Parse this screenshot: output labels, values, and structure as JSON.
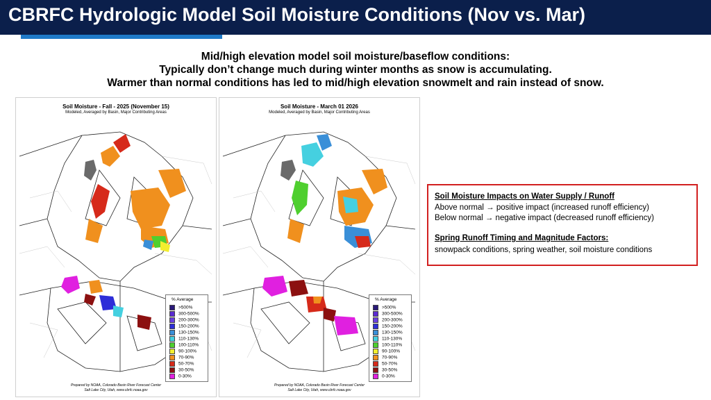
{
  "header": {
    "title": "CBRFC Hydrologic Model Soil Moisture Conditions (Nov vs. Mar)"
  },
  "subtitle": {
    "lines": [
      "Mid/high elevation model soil moisture/baseflow conditions:",
      "Typically don’t change much during winter months as snow is accumulating.",
      "Warmer than normal conditions has led to mid/high elevation snowmelt and rain instead of snow."
    ]
  },
  "maps": [
    {
      "title": "Soil Moisture - Fall - 2025 (November 15)",
      "subtitle": "Modeled, Averaged by Basin, Major Contributing Areas",
      "footer_line1": "Prepared by NOAA, Colorado Basin River Forecast Center",
      "footer_line2": "Salt Lake City, Utah, www.cbrfc.noaa.gov"
    },
    {
      "title": "Soil Moisture - March 01 2026",
      "subtitle": "Modeled, Averaged by Basin, Major Contributing Areas",
      "footer_line1": "Prepared by NOAA, Colorado Basin River Forecast Center",
      "footer_line2": "Salt Lake City, Utah, www.cbrfc.noaa.gov"
    }
  ],
  "legend": {
    "title": "% Average",
    "items": [
      {
        "label": ">500%",
        "color": "#2a1a7a"
      },
      {
        "label": "300-500%",
        "color": "#5b2bd1"
      },
      {
        "label": "200-300%",
        "color": "#6a3fe0"
      },
      {
        "label": "150-200%",
        "color": "#2e2ed8"
      },
      {
        "label": "130-150%",
        "color": "#3a8fd8"
      },
      {
        "label": "110-130%",
        "color": "#45d0e0"
      },
      {
        "label": "100-110%",
        "color": "#4fcf2f"
      },
      {
        "label": "90-100%",
        "color": "#f2ee2e"
      },
      {
        "label": "70-90%",
        "color": "#f0901e"
      },
      {
        "label": "50-70%",
        "color": "#d62a1a"
      },
      {
        "label": "30-50%",
        "color": "#8c1010"
      },
      {
        "label": "0-30%",
        "color": "#e020e0"
      }
    ]
  },
  "info_box": {
    "heading1": "Soil Moisture Impacts on Water Supply / Runoff",
    "line1": "Above normal → positive impact (increased runoff efficiency)",
    "line2": "Below normal → negative impact (decreased runoff efficiency)",
    "heading2": "Spring Runoff Timing and Magnitude Factors:",
    "line3": "snowpack conditions, spring weather, soil moisture conditions"
  }
}
